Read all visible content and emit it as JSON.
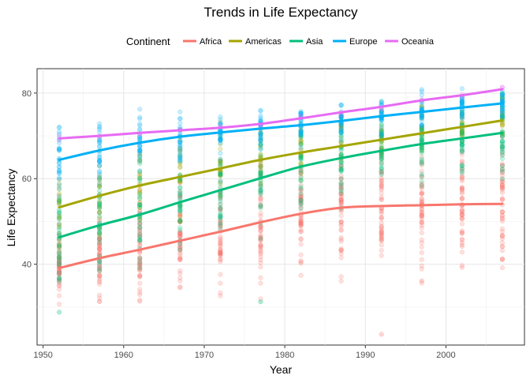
{
  "chart_data": {
    "type": "scatter",
    "title": "Trends in Life Expectancy",
    "xlabel": "Year",
    "ylabel": "Life Expectancy",
    "xlim": [
      1949.25,
      2009.75
    ],
    "ylim": [
      21.1,
      85.7
    ],
    "x_ticks": [
      1950,
      1960,
      1970,
      1980,
      1990,
      2000
    ],
    "y_ticks": [
      40,
      60,
      80
    ],
    "grid": true,
    "legend": {
      "title": "Continent",
      "position": "top"
    },
    "years": [
      1952,
      1957,
      1962,
      1967,
      1972,
      1977,
      1982,
      1987,
      1992,
      1997,
      2002,
      2007
    ],
    "series": [
      {
        "name": "Africa",
        "color": "#F8766D",
        "trend": [
          39.1,
          41.4,
          43.4,
          45.5,
          47.6,
          49.8,
          51.8,
          53.2,
          53.6,
          53.8,
          54.0,
          54.1
        ],
        "point_spread": [
          6.5,
          7,
          7.5,
          8,
          8.5,
          9,
          9,
          9.5,
          10,
          10,
          10,
          10
        ],
        "outliers": [
          [
            1992,
            23.6
          ],
          [
            1997,
            36.1
          ]
        ]
      },
      {
        "name": "Americas",
        "color": "#A3A500",
        "trend": [
          53.3,
          56.0,
          58.4,
          60.4,
          62.4,
          64.4,
          66.1,
          67.6,
          69.1,
          70.6,
          72.1,
          73.6
        ],
        "point_spread": [
          7,
          7,
          6.5,
          6,
          6,
          5.5,
          5,
          5,
          4.5,
          4,
          4,
          3.5
        ],
        "outliers": []
      },
      {
        "name": "Asia",
        "color": "#00BF7D",
        "trend": [
          46.3,
          49.1,
          51.6,
          54.5,
          57.3,
          60.1,
          62.8,
          64.8,
          66.5,
          68.1,
          69.4,
          70.7
        ],
        "point_spread": [
          9,
          9,
          9,
          8.5,
          8.5,
          8,
          7.5,
          7,
          6.5,
          6,
          6,
          6
        ],
        "outliers": [
          [
            1952,
            28.8
          ],
          [
            1977,
            31.2
          ]
        ]
      },
      {
        "name": "Europe",
        "color": "#00B0F6",
        "trend": [
          64.4,
          66.6,
          68.4,
          69.8,
          70.8,
          71.7,
          72.5,
          73.5,
          74.6,
          75.6,
          76.6,
          77.6
        ],
        "point_spread": [
          5.5,
          5,
          4.5,
          4,
          3.5,
          3.5,
          3,
          3,
          3,
          3,
          3,
          2.5
        ],
        "outliers": []
      },
      {
        "name": "Oceania",
        "color": "#E76BF3",
        "trend": [
          69.4,
          70.0,
          70.7,
          71.3,
          71.9,
          72.8,
          74.1,
          75.5,
          76.8,
          78.3,
          79.5,
          80.9
        ],
        "point_spread": [
          0.4,
          0.4,
          0.4,
          0.4,
          0.5,
          0.5,
          0.5,
          0.5,
          0.5,
          0.5,
          0.5,
          0.5
        ],
        "outliers": []
      }
    ]
  }
}
